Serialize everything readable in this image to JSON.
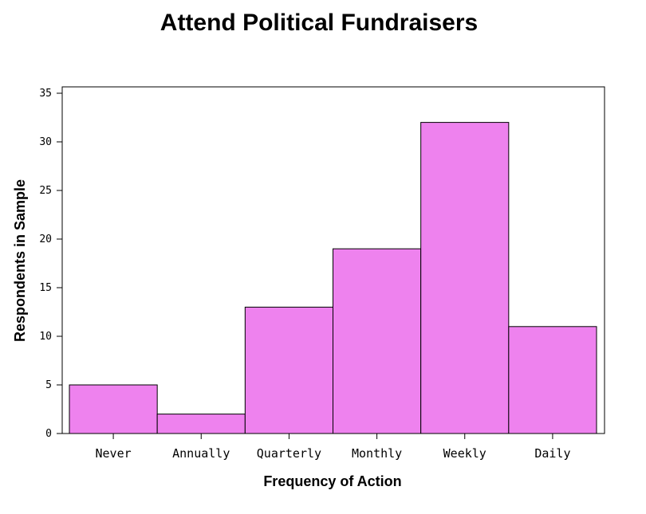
{
  "chart_data": {
    "type": "bar",
    "title": "Attend Political Fundraisers",
    "xlabel": "Frequency of Action",
    "ylabel": "Respondents in Sample",
    "categories": [
      "Never",
      "Annually",
      "Quarterly",
      "Monthly",
      "Weekly",
      "Daily"
    ],
    "values": [
      5,
      2,
      13,
      19,
      32,
      11
    ],
    "ylim": [
      0,
      35
    ],
    "yticks": [
      "0",
      "5",
      "10",
      "15",
      "20",
      "25",
      "30",
      "35"
    ],
    "grid": false,
    "bar_color": "#ee82ee",
    "bar_edge_color": "#000000"
  }
}
